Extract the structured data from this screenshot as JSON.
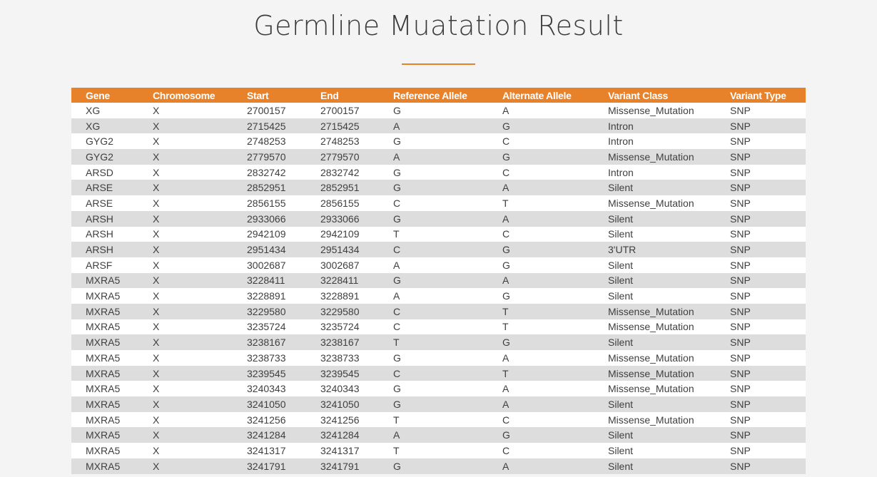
{
  "page": {
    "title": "Germline Muatation Result"
  },
  "table": {
    "columns": [
      "Gene",
      "Chromosome",
      "Start",
      "End",
      "Reference Allele",
      "Alternate Allele",
      "Variant Class",
      "Variant Type"
    ],
    "rows": [
      [
        "XG",
        "X",
        "2700157",
        "2700157",
        "G",
        "A",
        "Missense_Mutation",
        "SNP"
      ],
      [
        "XG",
        "X",
        "2715425",
        "2715425",
        "A",
        "G",
        "Intron",
        "SNP"
      ],
      [
        "GYG2",
        "X",
        "2748253",
        "2748253",
        "G",
        "C",
        "Intron",
        "SNP"
      ],
      [
        "GYG2",
        "X",
        "2779570",
        "2779570",
        "A",
        "G",
        "Missense_Mutation",
        "SNP"
      ],
      [
        "ARSD",
        "X",
        "2832742",
        "2832742",
        "G",
        "C",
        "Intron",
        "SNP"
      ],
      [
        "ARSE",
        "X",
        "2852951",
        "2852951",
        "G",
        "A",
        "Silent",
        "SNP"
      ],
      [
        "ARSE",
        "X",
        "2856155",
        "2856155",
        "C",
        "T",
        "Missense_Mutation",
        "SNP"
      ],
      [
        "ARSH",
        "X",
        "2933066",
        "2933066",
        "G",
        "A",
        "Silent",
        "SNP"
      ],
      [
        "ARSH",
        "X",
        "2942109",
        "2942109",
        "T",
        "C",
        "Silent",
        "SNP"
      ],
      [
        "ARSH",
        "X",
        "2951434",
        "2951434",
        "C",
        "G",
        "3'UTR",
        "SNP"
      ],
      [
        "ARSF",
        "X",
        "3002687",
        "3002687",
        "A",
        "G",
        "Silent",
        "SNP"
      ],
      [
        "MXRA5",
        "X",
        "3228411",
        "3228411",
        "G",
        "A",
        "Silent",
        "SNP"
      ],
      [
        "MXRA5",
        "X",
        "3228891",
        "3228891",
        "A",
        "G",
        "Silent",
        "SNP"
      ],
      [
        "MXRA5",
        "X",
        "3229580",
        "3229580",
        "C",
        "T",
        "Missense_Mutation",
        "SNP"
      ],
      [
        "MXRA5",
        "X",
        "3235724",
        "3235724",
        "C",
        "T",
        "Missense_Mutation",
        "SNP"
      ],
      [
        "MXRA5",
        "X",
        "3238167",
        "3238167",
        "T",
        "G",
        "Silent",
        "SNP"
      ],
      [
        "MXRA5",
        "X",
        "3238733",
        "3238733",
        "G",
        "A",
        "Missense_Mutation",
        "SNP"
      ],
      [
        "MXRA5",
        "X",
        "3239545",
        "3239545",
        "C",
        "T",
        "Missense_Mutation",
        "SNP"
      ],
      [
        "MXRA5",
        "X",
        "3240343",
        "3240343",
        "G",
        "A",
        "Missense_Mutation",
        "SNP"
      ],
      [
        "MXRA5",
        "X",
        "3241050",
        "3241050",
        "G",
        "A",
        "Silent",
        "SNP"
      ],
      [
        "MXRA5",
        "X",
        "3241256",
        "3241256",
        "T",
        "C",
        "Missense_Mutation",
        "SNP"
      ],
      [
        "MXRA5",
        "X",
        "3241284",
        "3241284",
        "A",
        "G",
        "Silent",
        "SNP"
      ],
      [
        "MXRA5",
        "X",
        "3241317",
        "3241317",
        "T",
        "C",
        "Silent",
        "SNP"
      ],
      [
        "MXRA5",
        "X",
        "3241791",
        "3241791",
        "G",
        "A",
        "Silent",
        "SNP"
      ]
    ]
  },
  "colors": {
    "accent": "#e8822a",
    "row_alt": "#dddddd",
    "background": "#f4f4f4"
  }
}
